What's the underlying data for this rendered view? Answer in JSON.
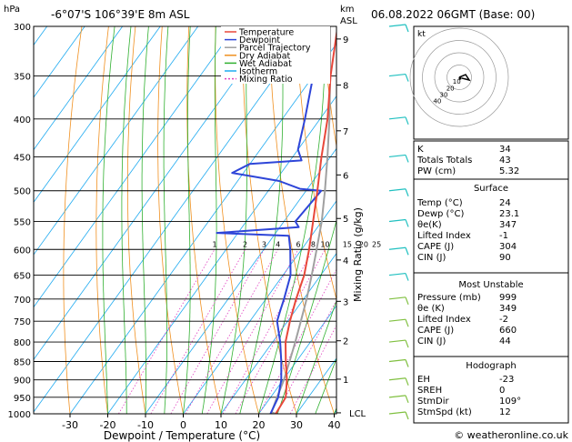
{
  "header": {
    "location": "-6°07'S  106°39'E  8m  ASL",
    "hpa_label": "hPa",
    "km_label": "km",
    "asl_label": "ASL",
    "datetime": "06.08.2022  06GMT  (Base: 00)"
  },
  "legend": [
    {
      "label": "Temperature",
      "color": "#e8473a",
      "dash": "none"
    },
    {
      "label": "Dewpoint",
      "color": "#2e45d8",
      "dash": "none"
    },
    {
      "label": "Parcel Trajectory",
      "color": "#a0a0a0",
      "dash": "none"
    },
    {
      "label": "Dry Adiabat",
      "color": "#f09020",
      "dash": "none"
    },
    {
      "label": "Wet Adiabat",
      "color": "#30b030",
      "dash": "none"
    },
    {
      "label": "Isotherm",
      "color": "#1eaaf0",
      "dash": "none"
    },
    {
      "label": "Mixing Ratio",
      "color": "#e040c0",
      "dash": "2,2"
    }
  ],
  "chart_data": {
    "type": "line",
    "xlabel": "Dewpoint / Temperature (°C)",
    "ylabel_right": "Mixing Ratio (g/kg)",
    "x_ticks": [
      -30,
      -20,
      -10,
      0,
      10,
      20,
      30,
      40
    ],
    "pressure_ticks": [
      300,
      350,
      400,
      450,
      500,
      550,
      600,
      650,
      700,
      750,
      800,
      850,
      900,
      950,
      1000
    ],
    "km_ticks": [
      {
        "label": "9",
        "p": 312
      },
      {
        "label": "8",
        "p": 360
      },
      {
        "label": "7",
        "p": 415
      },
      {
        "label": "6",
        "p": 476
      },
      {
        "label": "5",
        "p": 545
      },
      {
        "label": "4",
        "p": 620
      },
      {
        "label": "3",
        "p": 705
      },
      {
        "label": "2",
        "p": 797
      },
      {
        "label": "1",
        "p": 898
      },
      {
        "label": "LCL",
        "p": 997
      }
    ],
    "mixing_ratio_labels": [
      "1",
      "2",
      "3",
      "4",
      "6",
      "8",
      "10",
      "15",
      "20",
      "25"
    ],
    "mixing_ratio_values": [
      1,
      2,
      3,
      4,
      6,
      8,
      10,
      15,
      20,
      25
    ],
    "series": [
      {
        "name": "Temperature",
        "color": "#e8473a",
        "points": [
          [
            24.5,
            1000
          ],
          [
            24,
            950
          ],
          [
            21,
            900
          ],
          [
            17.2,
            850
          ],
          [
            13.4,
            800
          ],
          [
            10.6,
            750
          ],
          [
            8,
            700
          ],
          [
            5.6,
            650
          ],
          [
            2,
            600
          ],
          [
            -2.3,
            550
          ],
          [
            -7,
            500
          ],
          [
            -12.4,
            450
          ],
          [
            -18,
            400
          ],
          [
            -25.4,
            350
          ],
          [
            -33,
            300
          ]
        ]
      },
      {
        "name": "Dewpoint",
        "color": "#2e45d8",
        "points": [
          [
            23.1,
            1000
          ],
          [
            22,
            950
          ],
          [
            19.5,
            900
          ],
          [
            16,
            850
          ],
          [
            12,
            800
          ],
          [
            7.2,
            750
          ],
          [
            6,
            725
          ],
          [
            4.8,
            700
          ],
          [
            2,
            650
          ],
          [
            -3,
            600
          ],
          [
            -6,
            575
          ],
          [
            -25.6,
            570
          ],
          [
            -5,
            560
          ],
          [
            -7,
            550
          ],
          [
            -6,
            500
          ],
          [
            -12,
            497
          ],
          [
            -19,
            485
          ],
          [
            -33,
            473
          ],
          [
            -30,
            460
          ],
          [
            -17,
            455
          ],
          [
            -20,
            440
          ],
          [
            -24,
            400
          ],
          [
            -30,
            350
          ],
          [
            -37,
            300
          ]
        ]
      },
      {
        "name": "Parcel Trajectory",
        "color": "#a0a0a0",
        "points": [
          [
            24.5,
            1000
          ],
          [
            23.1,
            995
          ],
          [
            21.7,
            950
          ],
          [
            20.2,
            900
          ],
          [
            18.2,
            850
          ],
          [
            16,
            800
          ],
          [
            13.5,
            750
          ],
          [
            10.8,
            700
          ],
          [
            7.6,
            650
          ],
          [
            4,
            600
          ],
          [
            0,
            550
          ],
          [
            -5,
            500
          ],
          [
            -10.8,
            450
          ],
          [
            -17.5,
            400
          ],
          [
            -25.5,
            350
          ],
          [
            -35,
            300
          ]
        ]
      }
    ]
  },
  "hodograph": {
    "unit_label": "kt",
    "ring_labels": [
      "10",
      "20",
      "30",
      "40"
    ]
  },
  "indices": [
    {
      "label": "K",
      "value": "34"
    },
    {
      "label": "Totals Totals",
      "value": "43"
    },
    {
      "label": "PW (cm)",
      "value": "5.32"
    }
  ],
  "surface": {
    "title": "Surface",
    "rows": [
      {
        "label": "Temp (°C)",
        "value": "24"
      },
      {
        "label": "Dewp (°C)",
        "value": "23.1"
      },
      {
        "label": "θe(K)",
        "value": "347"
      },
      {
        "label": "Lifted Index",
        "value": "-1"
      },
      {
        "label": "CAPE (J)",
        "value": "304"
      },
      {
        "label": "CIN (J)",
        "value": "90"
      }
    ]
  },
  "most_unstable": {
    "title": "Most Unstable",
    "rows": [
      {
        "label": "Pressure (mb)",
        "value": "999"
      },
      {
        "label": "θe (K)",
        "value": "349"
      },
      {
        "label": "Lifted Index",
        "value": "-2"
      },
      {
        "label": "CAPE (J)",
        "value": "660"
      },
      {
        "label": "CIN (J)",
        "value": "44"
      }
    ]
  },
  "hodo_table": {
    "title": "Hodograph",
    "rows": [
      {
        "label": "EH",
        "value": "-23"
      },
      {
        "label": "SREH",
        "value": "0"
      },
      {
        "label": "StmDir",
        "value": "109°"
      },
      {
        "label": "StmSpd (kt)",
        "value": "12"
      }
    ]
  },
  "footer": {
    "copyright": "© weatheronline.co.uk"
  },
  "colors": {
    "isotherm": "#1eaaf0",
    "dry_adiabat": "#f09020",
    "wet_adiabat": "#30b030",
    "mixing_ratio": "#e040c0",
    "wind": "#20c0c0",
    "wind_low": "#80c040"
  }
}
